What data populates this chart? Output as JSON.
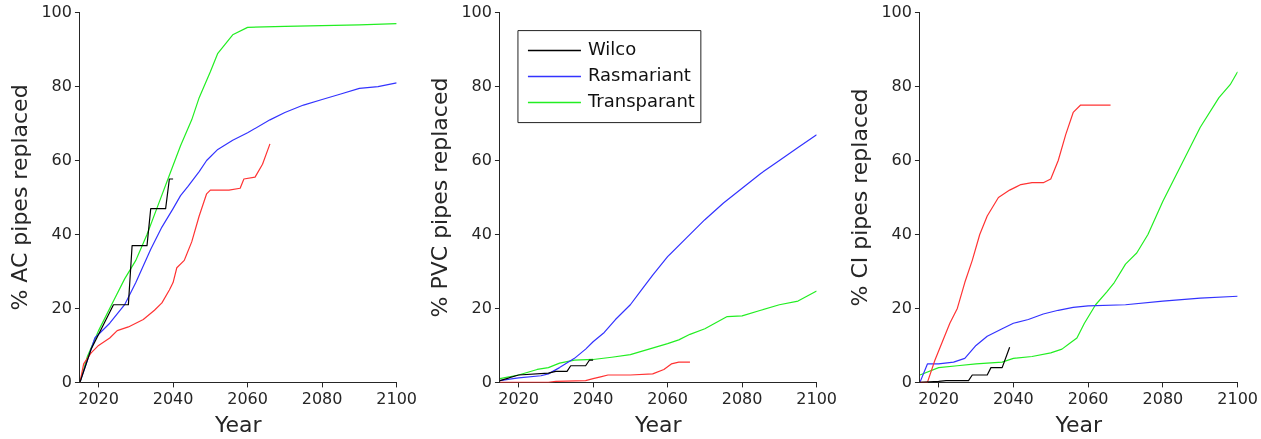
{
  "chart_data": [
    {
      "type": "line",
      "xlabel": "Year",
      "ylabel": "% AC pipes replaced",
      "xlim": [
        2015,
        2100
      ],
      "xticks": [
        2020,
        2040,
        2060,
        2080,
        2100
      ],
      "ylim": [
        0,
        100
      ],
      "yticks": [
        0,
        20,
        40,
        60,
        80,
        100
      ],
      "grid": false,
      "series": [
        {
          "color": "#000000",
          "x": [
            2015,
            2018,
            2021,
            2024,
            2028,
            2029,
            2033,
            2034,
            2038,
            2039,
            2040
          ],
          "values": [
            0,
            9,
            15,
            21,
            21,
            37,
            37,
            47,
            47,
            55,
            55
          ]
        },
        {
          "color": "#ff3333",
          "x": [
            2015,
            2016,
            2018,
            2020,
            2023,
            2025,
            2028,
            2032,
            2035,
            2037,
            2039,
            2040,
            2041,
            2043,
            2045,
            2047,
            2049,
            2050,
            2055,
            2058,
            2059,
            2062,
            2064,
            2066
          ],
          "values": [
            0,
            5,
            8,
            10,
            12,
            14,
            15,
            17,
            19.5,
            21.5,
            25,
            27,
            31,
            33,
            38,
            45,
            51,
            52,
            52,
            52.5,
            55,
            55.5,
            59,
            64.5
          ]
        },
        {
          "color": "#3333ff",
          "x": [
            2015,
            2017,
            2019,
            2023,
            2027,
            2030,
            2034,
            2037,
            2040,
            2042,
            2044,
            2047,
            2049,
            2052,
            2056,
            2060,
            2066,
            2070,
            2075,
            2080,
            2085,
            2090,
            2095,
            2100
          ],
          "values": [
            0,
            6,
            12,
            16,
            21,
            27,
            36,
            42,
            47,
            50.5,
            53,
            57,
            60,
            63,
            65.5,
            67.5,
            71,
            73,
            75,
            76.5,
            78,
            79.5,
            80,
            81
          ]
        },
        {
          "color": "#22ee22",
          "x": [
            2015,
            2017,
            2020,
            2024,
            2027,
            2030,
            2033,
            2036,
            2039,
            2042,
            2045,
            2047,
            2050,
            2052,
            2054,
            2056,
            2060,
            2070,
            2080,
            2090,
            2100
          ],
          "values": [
            0,
            7,
            14,
            22,
            28,
            33,
            40,
            48,
            56,
            64,
            71,
            77,
            84,
            89,
            91.5,
            94,
            96,
            96.3,
            96.5,
            96.7,
            97
          ]
        }
      ]
    },
    {
      "type": "line",
      "xlabel": "Year",
      "ylabel": "% PVC pipes replaced",
      "xlim": [
        2015,
        2100
      ],
      "xticks": [
        2020,
        2040,
        2060,
        2080,
        2100
      ],
      "ylim": [
        0,
        100
      ],
      "yticks": [
        0,
        20,
        40,
        60,
        80,
        100
      ],
      "grid": false,
      "legend": "top left",
      "series": [
        {
          "name": "Wilco",
          "color": "#000000",
          "x": [
            2015,
            2020,
            2028,
            2030,
            2033,
            2034,
            2038,
            2039,
            2040
          ],
          "values": [
            0.5,
            2,
            2.5,
            3,
            3,
            4.5,
            4.5,
            6,
            6
          ]
        },
        {
          "color": "#ff3333",
          "x": [
            2015,
            2028,
            2030,
            2038,
            2040,
            2042,
            2044,
            2050,
            2056,
            2059,
            2061,
            2063,
            2066
          ],
          "values": [
            0,
            0,
            0.3,
            0.5,
            1,
            1.5,
            2,
            2,
            2.3,
            3.5,
            5,
            5.5,
            5.5
          ]
        },
        {
          "name": "Rasmariant",
          "color": "#3333ff",
          "x": [
            2015,
            2020,
            2026,
            2028,
            2031,
            2035,
            2038,
            2040,
            2043,
            2046,
            2050,
            2053,
            2056,
            2060,
            2065,
            2070,
            2075,
            2080,
            2085,
            2090,
            2095,
            2100
          ],
          "values": [
            0.5,
            1.2,
            1.8,
            2.3,
            4,
            6.5,
            9,
            11,
            13.5,
            17,
            21,
            25,
            29,
            34,
            39,
            44,
            48.5,
            52.5,
            56.5,
            60,
            63.5,
            67
          ]
        },
        {
          "name": "Transparant",
          "color": "#22ee22",
          "x": [
            2015,
            2020,
            2025,
            2028,
            2031,
            2035,
            2040,
            2045,
            2050,
            2055,
            2060,
            2063,
            2066,
            2070,
            2076,
            2080,
            2085,
            2090,
            2095,
            2100
          ],
          "values": [
            1,
            2,
            3.5,
            4,
            5.2,
            6,
            6.2,
            6.8,
            7.5,
            9,
            10.5,
            11.5,
            13,
            14.5,
            17.8,
            18,
            19.5,
            21,
            22,
            24.7
          ]
        }
      ]
    },
    {
      "type": "line",
      "xlabel": "Year",
      "ylabel": "% CI pipes replaced",
      "xlim": [
        2015,
        2100
      ],
      "xticks": [
        2020,
        2040,
        2060,
        2080,
        2100
      ],
      "ylim": [
        0,
        100
      ],
      "yticks": [
        0,
        20,
        40,
        60,
        80,
        100
      ],
      "grid": false,
      "series": [
        {
          "color": "#000000",
          "x": [
            2015,
            2020,
            2022,
            2028,
            2029,
            2033,
            2034,
            2037,
            2039
          ],
          "values": [
            0,
            0.3,
            0.5,
            0.5,
            2,
            2,
            4,
            4,
            9.5
          ]
        },
        {
          "color": "#ff3333",
          "x": [
            2015,
            2017,
            2019,
            2021,
            2023,
            2025,
            2027,
            2029,
            2031,
            2033,
            2036,
            2039,
            2042,
            2045,
            2048,
            2050,
            2052,
            2054,
            2056,
            2058,
            2066
          ],
          "values": [
            0,
            0,
            6,
            11,
            16,
            20,
            27,
            33,
            40,
            45,
            50,
            52,
            53.5,
            54,
            54,
            55,
            60,
            67,
            73,
            75,
            75
          ]
        },
        {
          "color": "#3333ff",
          "x": [
            2015,
            2017,
            2020,
            2024,
            2027,
            2030,
            2033,
            2037,
            2040,
            2044,
            2048,
            2052,
            2056,
            2060,
            2070,
            2080,
            2090,
            2100
          ],
          "values": [
            0,
            5,
            5,
            5.5,
            6.5,
            10,
            12.5,
            14.5,
            16,
            17,
            18.5,
            19.5,
            20.3,
            20.7,
            21,
            22,
            22.8,
            23.3
          ]
        },
        {
          "color": "#22ee22",
          "x": [
            2015,
            2020,
            2025,
            2030,
            2037,
            2040,
            2045,
            2050,
            2053,
            2055,
            2057,
            2059,
            2062,
            2065,
            2067,
            2070,
            2073,
            2076,
            2080,
            2085,
            2090,
            2095,
            2098,
            2100
          ],
          "values": [
            2,
            4,
            4.5,
            5,
            5.5,
            6.5,
            7,
            8,
            9,
            10.5,
            12,
            16,
            21,
            24.5,
            27,
            32,
            35,
            40,
            49,
            59,
            69,
            77,
            80.5,
            84
          ]
        }
      ]
    }
  ]
}
